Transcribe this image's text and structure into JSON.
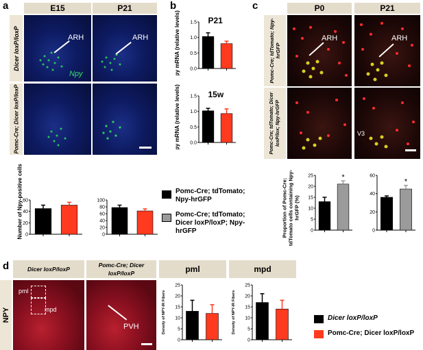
{
  "panels": {
    "a": {
      "letter": "a",
      "cols": [
        "E15",
        "P21"
      ],
      "rows": [
        "Dicer loxP/loxP",
        "Pomc-Cre; Dicer loxP/loxP"
      ],
      "arh": "ARH",
      "npy_label": "Npy",
      "ylabel": "Number of Npy-positive cells"
    },
    "b": {
      "letter": "b",
      "top_title": "P21",
      "bottom_title": "15w",
      "ylabel": "Npy mRNA (relative levels)"
    },
    "c": {
      "letter": "c",
      "cols": [
        "P0",
        "P21"
      ],
      "rows": [
        "Pomc-Cre; tdTomato; Npy-hrGFP",
        "Pomc-Cre; tdTomato; Dicer loxP/lox; Npy-hrGFP"
      ],
      "arh": "ARH",
      "v3": "V3",
      "ylabel": "Proportion of Pomc-Cre; tdTomato cells containing Npy-hrGFP (%)",
      "star": "*"
    },
    "d": {
      "letter": "d",
      "cols": [
        "Dicer loxP/loxP",
        "Pomc-Cre; Dicer loxP/loxP",
        "pml",
        "mpd"
      ],
      "row": "NPY",
      "pml": "pml",
      "mpd": "mpd",
      "pvh": "PVH",
      "ylabel": "Density of NPY-IR Fibers"
    }
  },
  "legend_c": {
    "item1": "Pomc-Cre; tdTomato; Npy-hrGFP",
    "item2": "Pomc-Cre; tdTomato; Dicer loxP/loxP; Npy-hrGFP"
  },
  "legend_d": {
    "item1": "Dicer loxP/loxP",
    "item2": "Pomc-Cre; Dicer loxP/loxP"
  },
  "colors": {
    "black": "#000000",
    "red": "#ff3a1f",
    "gray": "#9b9b9b"
  },
  "chart_data": [
    {
      "id": "a-E15",
      "type": "bar",
      "categories": [
        "Dicer loxP/loxP",
        "Pomc-Cre; Dicer loxP/loxP"
      ],
      "values": [
        45,
        51
      ],
      "errors": [
        6,
        5
      ],
      "ylim": [
        0,
        60
      ],
      "yticks": [
        0,
        20,
        40,
        60
      ],
      "ylabel": "Number of Npy-positive cells"
    },
    {
      "id": "a-P21",
      "type": "bar",
      "categories": [
        "Dicer loxP/loxP",
        "Pomc-Cre; Dicer loxP/loxP"
      ],
      "values": [
        78,
        68
      ],
      "errors": [
        7,
        6
      ],
      "ylim": [
        0,
        100
      ],
      "yticks": [
        0,
        20,
        40,
        60,
        80,
        100
      ]
    },
    {
      "id": "b-P21",
      "type": "bar",
      "title": "P21",
      "categories": [
        "Dicer loxP/loxP",
        "Pomc-Cre; Dicer loxP/loxP"
      ],
      "values": [
        1.03,
        0.8
      ],
      "errors": [
        0.12,
        0.08
      ],
      "ylim": [
        0,
        1.5
      ],
      "yticks": [
        0.0,
        0.5,
        1.0,
        1.5
      ],
      "ylabel": "Npy mRNA (relative levels)"
    },
    {
      "id": "b-15w",
      "type": "bar",
      "title": "15w",
      "categories": [
        "Dicer loxP/loxP",
        "Pomc-Cre; Dicer loxP/loxP"
      ],
      "values": [
        1.02,
        0.93
      ],
      "errors": [
        0.08,
        0.15
      ],
      "ylim": [
        0,
        1.5
      ],
      "yticks": [
        0.0,
        0.5,
        1.0,
        1.5
      ],
      "ylabel": "Npy mRNA (relative levels)"
    },
    {
      "id": "c-P0",
      "type": "bar",
      "categories": [
        "Pomc-Cre; tdTomato; Npy-hrGFP",
        "Pomc-Cre; tdTomato; Dicer loxP/loxP; Npy-hrGFP"
      ],
      "values": [
        13,
        21
      ],
      "errors": [
        2,
        1.5
      ],
      "ylim": [
        0,
        25
      ],
      "yticks": [
        0,
        5,
        10,
        15,
        20,
        25
      ],
      "ylabel": "Proportion of Pomc-Cre; tdTomato cells containing Npy-hrGFP (%)",
      "annotation": "*"
    },
    {
      "id": "c-P21",
      "type": "bar",
      "categories": [
        "Pomc-Cre; tdTomato; Npy-hrGFP",
        "Pomc-Cre; tdTomato; Dicer loxP/loxP; Npy-hrGFP"
      ],
      "values": [
        36,
        45
      ],
      "errors": [
        1.5,
        4
      ],
      "ylim": [
        0,
        60
      ],
      "yticks": [
        0,
        20,
        40,
        60
      ],
      "annotation": "*"
    },
    {
      "id": "d-pml",
      "type": "bar",
      "title": "pml",
      "categories": [
        "Dicer loxP/loxP",
        "Pomc-Cre; Dicer loxP/loxP"
      ],
      "values": [
        13,
        12
      ],
      "errors": [
        5,
        4
      ],
      "ylim": [
        0,
        25
      ],
      "yticks": [
        0,
        5,
        10,
        15,
        20,
        25
      ],
      "ylabel": "Density of NPY-IR Fibers"
    },
    {
      "id": "d-mpd",
      "type": "bar",
      "title": "mpd",
      "categories": [
        "Dicer loxP/loxP",
        "Pomc-Cre; Dicer loxP/loxP"
      ],
      "values": [
        17,
        14
      ],
      "errors": [
        4,
        4
      ],
      "ylim": [
        0,
        25
      ],
      "yticks": [
        0,
        5,
        10,
        15,
        20,
        25
      ],
      "ylabel": "Density of NPY-IR Fibers"
    }
  ]
}
